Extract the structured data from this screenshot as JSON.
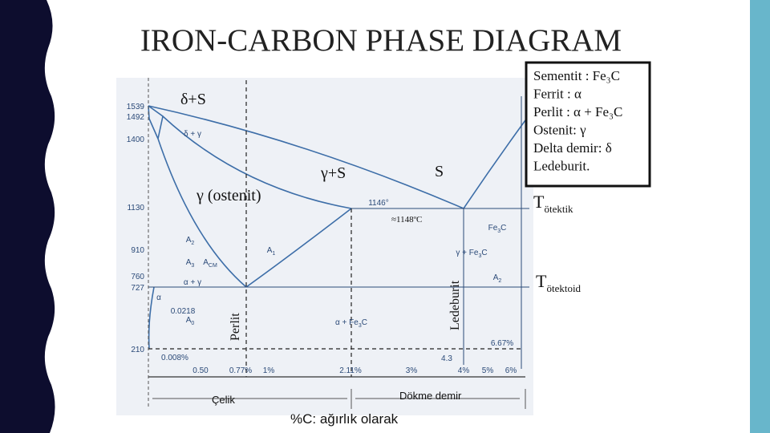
{
  "title": "IRON-CARBON PHASE DIAGRAM",
  "legend": [
    "Sementit : Fe₃C",
    "Ferrit : α",
    "Perlit : α + Fe₃C",
    "Ostenit: γ",
    "Delta demir: δ",
    "Ledeburit."
  ],
  "diagram": {
    "temperature_labels": [
      "1539",
      "1492",
      "1400",
      "1130",
      "910",
      "760",
      "727",
      "210"
    ],
    "composition_labels": [
      "0.008%",
      "0.50",
      "0.77%",
      "1%",
      "2.11%",
      "3%",
      "4%",
      "5%",
      "6%"
    ],
    "point_labels": [
      "0.0218",
      "4.3",
      "6.67%",
      "1146°"
    ],
    "region_labels": [
      {
        "text": "δ + γ"
      },
      {
        "text": "α + γ"
      },
      {
        "text": "α"
      },
      {
        "text": "α + Fe",
        "sub": "3",
        "tail": "C"
      },
      {
        "text": "γ + Fe",
        "sub": "3",
        "tail": "C"
      },
      {
        "text": "Fe",
        "sub": "3",
        "tail": "C"
      },
      {
        "text": "A",
        "sub": "2"
      },
      {
        "text": "A",
        "sub": "2"
      },
      {
        "text": "A",
        "sub": "3"
      },
      {
        "text": "A",
        "sub": "CM"
      },
      {
        "text": "A",
        "sub": "1"
      },
      {
        "text": "A",
        "sub": "0"
      }
    ]
  },
  "annotations": {
    "delta_s": "δ+S",
    "austenite": "γ (ostenit)",
    "gamma_s": "γ+S",
    "s": "S",
    "eutectic_temp": "≈1148ºC",
    "pearlite": "Perlit",
    "ledeburite": "Ledeburit",
    "eutectic": {
      "symbol": "T",
      "subscript": "ötektik"
    },
    "eutectoid": {
      "symbol": "T",
      "subscript": "ötektoid"
    },
    "steel": "Çelik",
    "cast_iron": "Dökme demir",
    "axis_note": "%C: ağırlık olarak"
  }
}
